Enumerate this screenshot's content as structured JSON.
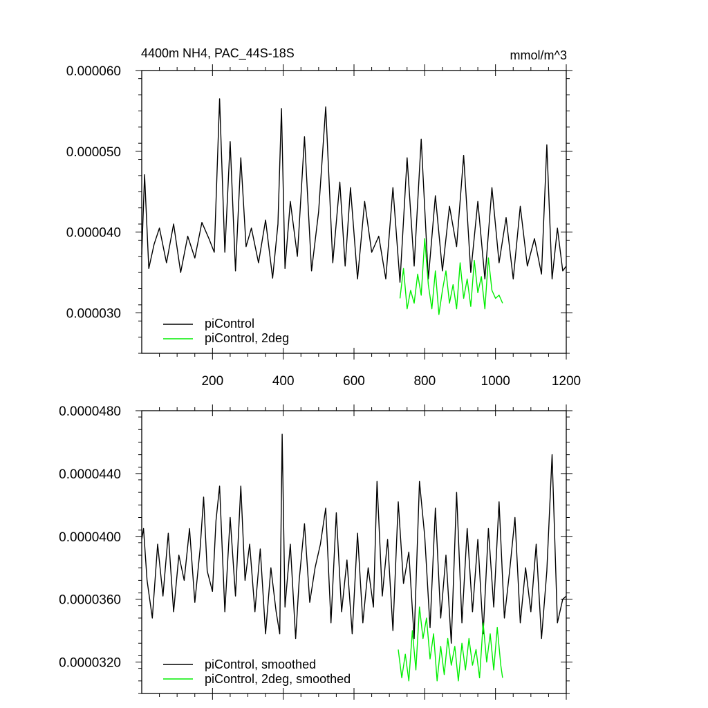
{
  "chart_data": [
    {
      "type": "line",
      "title_left": "4400m NH4, PAC_44S-18S",
      "title_right": "mmol/m^3",
      "xlim": [
        0,
        1200
      ],
      "ylim": [
        2.5e-05,
        6e-05
      ],
      "x_ticks": [
        200,
        400,
        600,
        800,
        1000,
        1200
      ],
      "x_tick_labels": [
        "200",
        "400",
        "600",
        "800",
        "1000",
        "1200"
      ],
      "y_ticks": [
        3e-05,
        4e-05,
        5e-05,
        6e-05
      ],
      "y_tick_labels": [
        "0.000030",
        "0.000040",
        "0.000050",
        "0.000060"
      ],
      "legend_position": "bottom-left",
      "series": [
        {
          "name": "piControl",
          "color": "#000000",
          "x": [
            0,
            8,
            20,
            35,
            50,
            70,
            90,
            110,
            130,
            150,
            170,
            190,
            205,
            220,
            235,
            250,
            265,
            280,
            295,
            310,
            330,
            350,
            370,
            385,
            395,
            405,
            420,
            440,
            460,
            480,
            500,
            520,
            540,
            560,
            575,
            590,
            610,
            630,
            650,
            670,
            690,
            710,
            730,
            750,
            770,
            790,
            810,
            830,
            850,
            870,
            890,
            910,
            930,
            950,
            970,
            990,
            1010,
            1030,
            1050,
            1070,
            1090,
            1110,
            1130,
            1145,
            1160,
            1175,
            1190,
            1200
          ],
          "values": [
            3.72e-05,
            4.71e-05,
            3.55e-05,
            3.85e-05,
            4.05e-05,
            3.62e-05,
            4.1e-05,
            3.5e-05,
            3.95e-05,
            3.68e-05,
            4.12e-05,
            3.92e-05,
            3.75e-05,
            5.65e-05,
            3.75e-05,
            5.12e-05,
            3.52e-05,
            4.92e-05,
            3.82e-05,
            4.05e-05,
            3.62e-05,
            4.15e-05,
            3.43e-05,
            4.1e-05,
            5.53e-05,
            3.55e-05,
            4.38e-05,
            3.7e-05,
            5.18e-05,
            3.52e-05,
            4.25e-05,
            5.55e-05,
            3.62e-05,
            4.62e-05,
            3.58e-05,
            4.55e-05,
            3.42e-05,
            4.38e-05,
            3.75e-05,
            3.95e-05,
            3.42e-05,
            4.55e-05,
            3.38e-05,
            4.92e-05,
            3.58e-05,
            5.15e-05,
            3.42e-05,
            4.45e-05,
            3.52e-05,
            4.32e-05,
            3.82e-05,
            4.95e-05,
            3.5e-05,
            4.38e-05,
            3.42e-05,
            4.55e-05,
            3.62e-05,
            4.18e-05,
            3.42e-05,
            4.32e-05,
            3.58e-05,
            3.92e-05,
            3.48e-05,
            5.08e-05,
            3.42e-05,
            4.05e-05,
            3.52e-05,
            3.58e-05
          ]
        },
        {
          "name": "piControl, 2deg",
          "color": "#00ee00",
          "x": [
            730,
            740,
            750,
            760,
            770,
            780,
            790,
            800,
            810,
            820,
            830,
            840,
            850,
            860,
            870,
            880,
            890,
            900,
            910,
            920,
            930,
            940,
            950,
            960,
            970,
            980,
            990,
            1000,
            1010,
            1020
          ],
          "values": [
            3.18e-05,
            3.55e-05,
            3.05e-05,
            3.28e-05,
            3.12e-05,
            3.48e-05,
            3.22e-05,
            3.92e-05,
            3.35e-05,
            3.05e-05,
            3.52e-05,
            2.98e-05,
            3.28e-05,
            3.52e-05,
            3.12e-05,
            3.35e-05,
            3.05e-05,
            3.62e-05,
            3.18e-05,
            3.42e-05,
            3.08e-05,
            3.65e-05,
            3.25e-05,
            3.45e-05,
            3.05e-05,
            3.68e-05,
            3.28e-05,
            3.18e-05,
            3.22e-05,
            3.12e-05
          ]
        }
      ]
    },
    {
      "type": "line",
      "xlim": [
        0,
        1200
      ],
      "ylim": [
        3e-05,
        4.8e-05
      ],
      "x_ticks": [
        200,
        400,
        600,
        800,
        1000,
        1200
      ],
      "y_ticks": [
        3.2e-05,
        3.6e-05,
        4e-05,
        4.4e-05,
        4.8e-05
      ],
      "y_tick_labels": [
        "0.0000320",
        "0.0000360",
        "0.0000400",
        "0.0000440",
        "0.0000480"
      ],
      "legend_position": "bottom-left",
      "series": [
        {
          "name": "piControl, smoothed",
          "color": "#000000",
          "x": [
            0,
            5,
            15,
            30,
            45,
            60,
            75,
            90,
            105,
            120,
            135,
            150,
            165,
            175,
            185,
            200,
            210,
            220,
            235,
            250,
            265,
            280,
            292,
            305,
            320,
            335,
            350,
            365,
            380,
            390,
            397,
            405,
            420,
            435,
            445,
            460,
            475,
            490,
            505,
            520,
            535,
            550,
            565,
            580,
            595,
            610,
            625,
            640,
            655,
            665,
            680,
            695,
            710,
            725,
            740,
            755,
            770,
            785,
            800,
            815,
            830,
            845,
            860,
            875,
            890,
            905,
            920,
            935,
            950,
            965,
            980,
            995,
            1010,
            1025,
            1040,
            1055,
            1070,
            1085,
            1100,
            1115,
            1130,
            1145,
            1160,
            1175,
            1190,
            1200
          ],
          "values": [
            3.98e-05,
            4.05e-05,
            3.72e-05,
            3.48e-05,
            3.95e-05,
            3.62e-05,
            4.02e-05,
            3.52e-05,
            3.88e-05,
            3.72e-05,
            4.05e-05,
            3.58e-05,
            3.92e-05,
            4.25e-05,
            3.78e-05,
            3.65e-05,
            4.1e-05,
            4.32e-05,
            3.52e-05,
            4.12e-05,
            3.62e-05,
            4.32e-05,
            3.72e-05,
            3.95e-05,
            3.52e-05,
            3.92e-05,
            3.38e-05,
            3.8e-05,
            3.52e-05,
            3.38e-05,
            4.65e-05,
            3.55e-05,
            3.95e-05,
            3.35e-05,
            3.72e-05,
            4.08e-05,
            3.58e-05,
            3.8e-05,
            3.95e-05,
            4.18e-05,
            3.45e-05,
            4.15e-05,
            3.52e-05,
            3.85e-05,
            3.38e-05,
            4.02e-05,
            3.45e-05,
            3.8e-05,
            3.55e-05,
            4.35e-05,
            3.62e-05,
            3.98e-05,
            3.4e-05,
            4.22e-05,
            3.7e-05,
            3.9e-05,
            3.35e-05,
            4.35e-05,
            4e-05,
            3.42e-05,
            4.18e-05,
            3.48e-05,
            3.88e-05,
            3.32e-05,
            4.28e-05,
            3.45e-05,
            4.05e-05,
            3.52e-05,
            3.98e-05,
            3.38e-05,
            4.05e-05,
            3.55e-05,
            4.22e-05,
            3.48e-05,
            3.78e-05,
            4.12e-05,
            3.45e-05,
            3.8e-05,
            3.52e-05,
            3.95e-05,
            3.35e-05,
            3.78e-05,
            4.52e-05,
            3.45e-05,
            3.6e-05,
            3.62e-05
          ]
        },
        {
          "name": "piControl, 2deg, smoothed",
          "color": "#00ee00",
          "x": [
            725,
            735,
            745,
            755,
            765,
            775,
            785,
            795,
            805,
            815,
            825,
            835,
            845,
            855,
            865,
            875,
            885,
            895,
            905,
            915,
            925,
            935,
            945,
            955,
            965,
            975,
            985,
            995,
            1005,
            1015,
            1020
          ],
          "values": [
            3.28e-05,
            3.1e-05,
            3.25e-05,
            3.08e-05,
            3.4e-05,
            3.15e-05,
            3.55e-05,
            3.35e-05,
            3.48e-05,
            3.22e-05,
            3.38e-05,
            3.08e-05,
            3.3e-05,
            3.12e-05,
            3.35e-05,
            3.18e-05,
            3.3e-05,
            3.08e-05,
            3.32e-05,
            3.15e-05,
            3.35e-05,
            3.18e-05,
            3.28e-05,
            3.1e-05,
            3.45e-05,
            3.2e-05,
            3.38e-05,
            3.15e-05,
            3.42e-05,
            3.18e-05,
            3.1e-05
          ]
        }
      ]
    }
  ]
}
